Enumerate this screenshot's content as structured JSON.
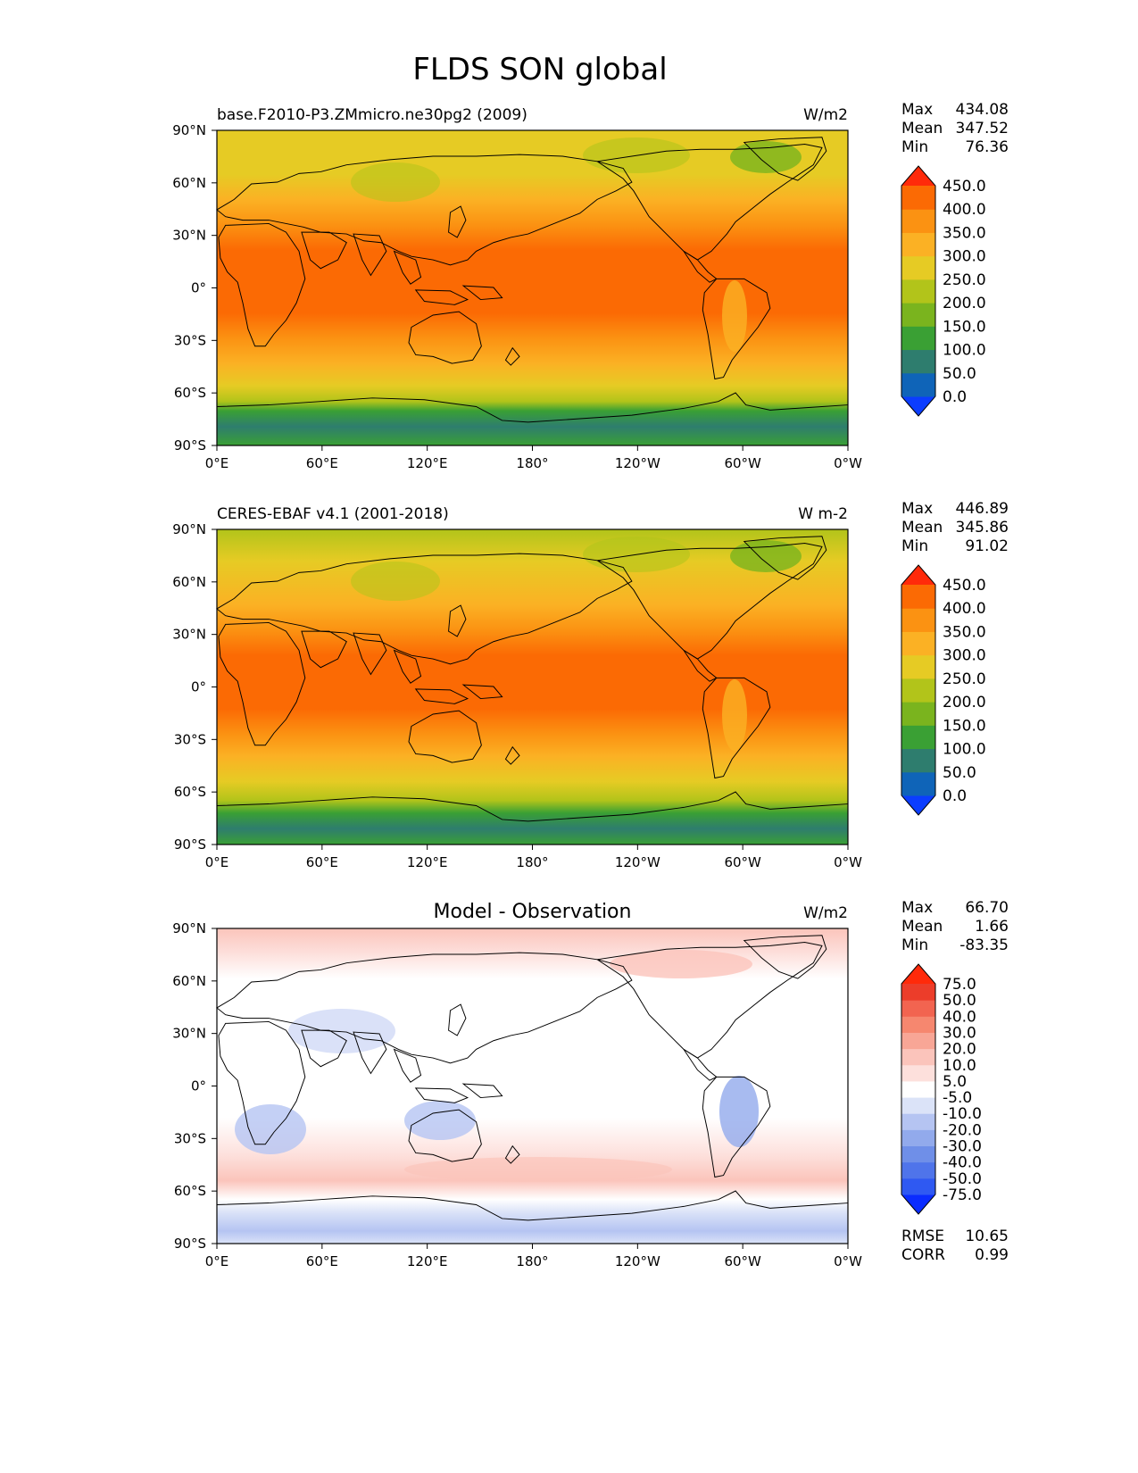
{
  "figure_title": "FLDS SON global",
  "axes": {
    "lat_ticks": [
      "90°N",
      "60°N",
      "30°N",
      "0°",
      "30°S",
      "60°S",
      "90°S"
    ],
    "lon_ticks": [
      "0°E",
      "60°E",
      "120°E",
      "180°",
      "120°W",
      "60°W",
      "0°W"
    ]
  },
  "panels": [
    {
      "id": "test",
      "title_left": "base.F2010-P3.ZMmicro.ne30pg2 (2009)",
      "title_center": "",
      "units": "W/m2",
      "stats": {
        "max_label": "Max",
        "max": "434.08",
        "mean_label": "Mean",
        "mean": "347.52",
        "min_label": "Min",
        "min": "76.36"
      },
      "colorbar": {
        "levels": [
          "0.0",
          "50.0",
          "100.0",
          "150.0",
          "200.0",
          "250.0",
          "300.0",
          "350.0",
          "400.0",
          "450.0"
        ],
        "colors": [
          "#0b3dff",
          "#0f64b8",
          "#2e7d6e",
          "#3aa034",
          "#7ab41e",
          "#b2c41a",
          "#e6cb24",
          "#fbb124",
          "#fb9212",
          "#fb6a04",
          "#ff2a0a"
        ]
      },
      "extra_stats": []
    },
    {
      "id": "ref",
      "title_left": "CERES-EBAF v4.1 (2001-2018)",
      "title_center": "",
      "units": "W m-2",
      "stats": {
        "max_label": "Max",
        "max": "446.89",
        "mean_label": "Mean",
        "mean": "345.86",
        "min_label": "Min",
        "min": "91.02"
      },
      "colorbar": {
        "levels": [
          "0.0",
          "50.0",
          "100.0",
          "150.0",
          "200.0",
          "250.0",
          "300.0",
          "350.0",
          "400.0",
          "450.0"
        ],
        "colors": [
          "#0b3dff",
          "#0f64b8",
          "#2e7d6e",
          "#3aa034",
          "#7ab41e",
          "#b2c41a",
          "#e6cb24",
          "#fbb124",
          "#fb9212",
          "#fb6a04",
          "#ff2a0a"
        ]
      },
      "extra_stats": []
    },
    {
      "id": "diff",
      "title_left": "",
      "title_center": "Model - Observation",
      "units": "W/m2",
      "stats": {
        "max_label": "Max",
        "max": "66.70",
        "mean_label": "Mean",
        "mean": "1.66",
        "min_label": "Min",
        "min": "-83.35"
      },
      "colorbar": {
        "levels": [
          "-75.0",
          "-50.0",
          "-40.0",
          "-30.0",
          "-20.0",
          "-10.0",
          "-5.0",
          "5.0",
          "10.0",
          "20.0",
          "30.0",
          "40.0",
          "50.0",
          "75.0"
        ],
        "colors": [
          "#0a2cff",
          "#2f59f2",
          "#4f74ea",
          "#6f8fe8",
          "#92aaec",
          "#b5c4f2",
          "#dbe3f8",
          "#ffffff",
          "#fde0dc",
          "#fbc4bb",
          "#f8a696",
          "#f6876f",
          "#f26450",
          "#ec3d2a",
          "#ff2a0a"
        ]
      },
      "extra_stats": [
        {
          "label": "RMSE",
          "value": "10.65"
        },
        {
          "label": "CORR",
          "value": "0.99"
        }
      ]
    }
  ]
}
